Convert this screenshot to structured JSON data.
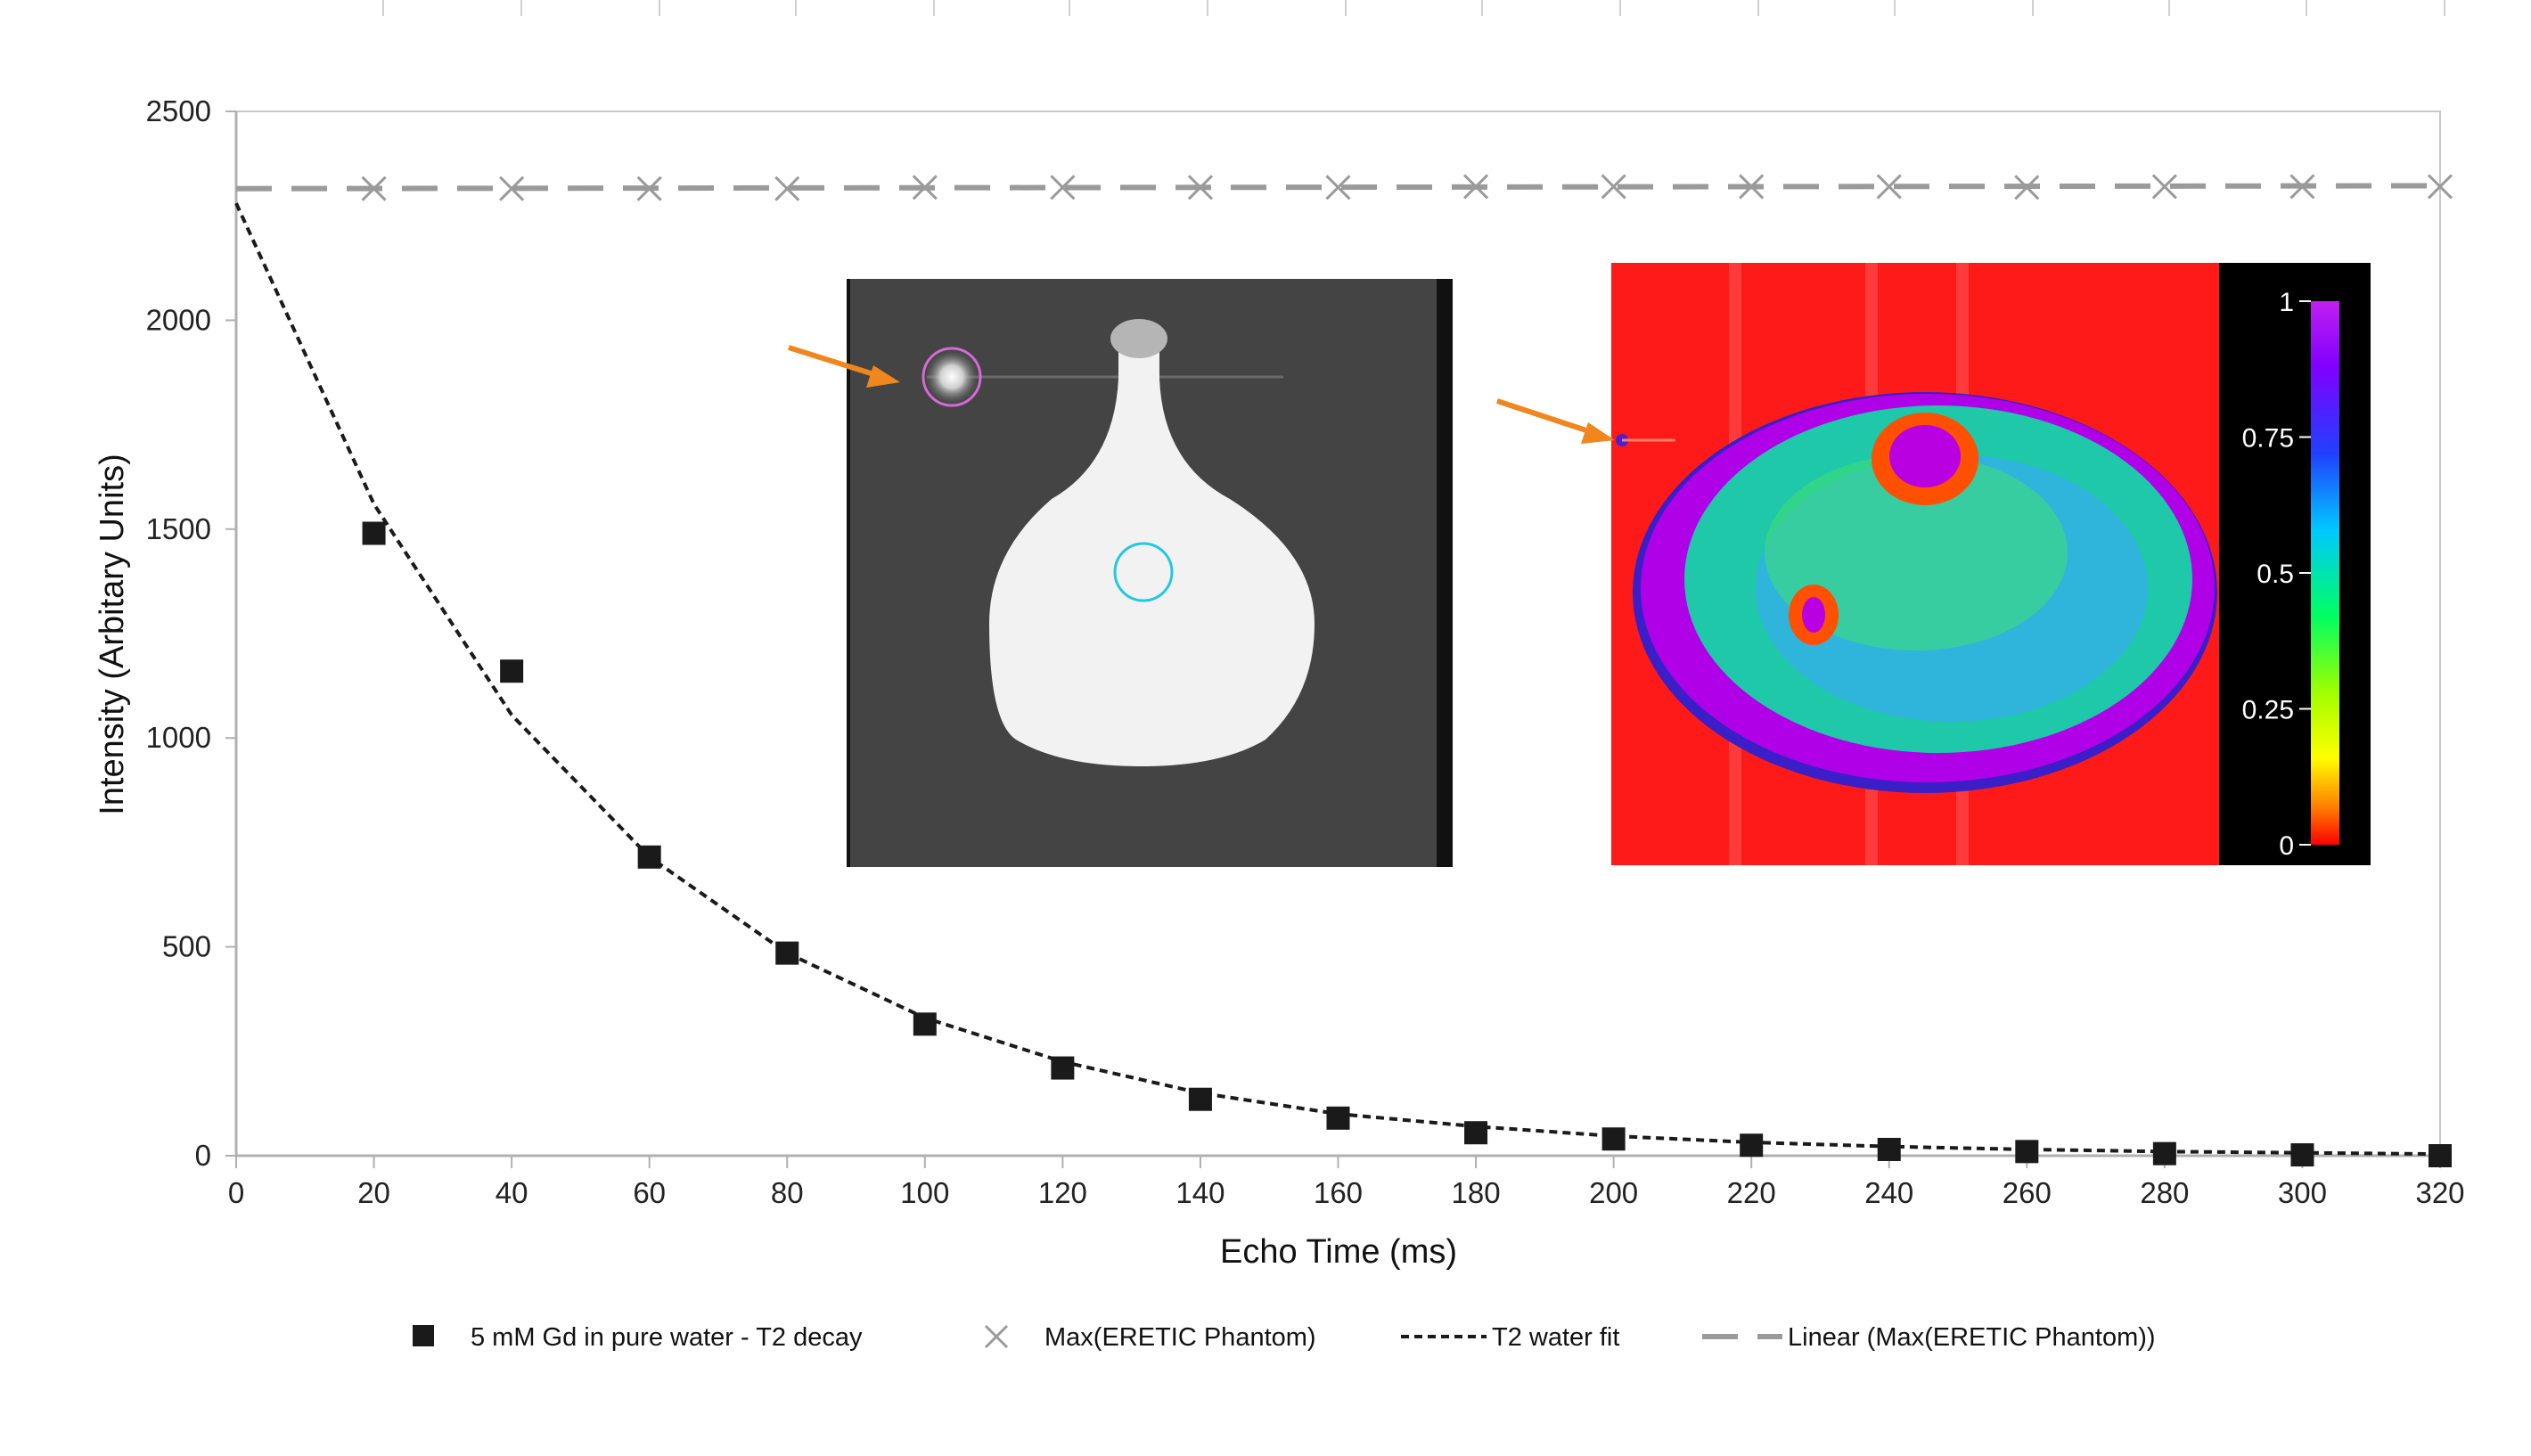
{
  "chart_data": {
    "type": "scatter",
    "title": "",
    "xlabel": "Echo Time (ms)",
    "ylabel": "Intensity (Arbitary Units)",
    "xlim": [
      0,
      320
    ],
    "ylim": [
      0,
      2500
    ],
    "x_ticks": [
      0,
      20,
      40,
      60,
      80,
      100,
      120,
      140,
      160,
      180,
      200,
      220,
      240,
      260,
      280,
      300,
      320
    ],
    "y_ticks": [
      0,
      500,
      1000,
      1500,
      2000,
      2500
    ],
    "grid": "horizontal top line only",
    "legend_position": "bottom",
    "series": [
      {
        "name": "5 mM Gd in pure water - T2 decay",
        "marker": "filled-square",
        "color": "#1a1a1a",
        "x": [
          20,
          40,
          60,
          80,
          100,
          120,
          140,
          160,
          180,
          200,
          220,
          240,
          260,
          280,
          300,
          320
        ],
        "y": [
          1490,
          1160,
          715,
          485,
          315,
          210,
          135,
          90,
          55,
          40,
          25,
          15,
          10,
          5,
          2,
          0
        ]
      },
      {
        "name": "Max(ERETIC Phantom)",
        "marker": "x",
        "color": "#9a9a9a",
        "x": [
          20,
          40,
          60,
          80,
          100,
          120,
          140,
          160,
          180,
          200,
          220,
          240,
          260,
          280,
          300,
          320
        ],
        "y": [
          2315,
          2315,
          2315,
          2315,
          2318,
          2318,
          2318,
          2318,
          2320,
          2320,
          2320,
          2320,
          2318,
          2320,
          2320,
          2320
        ]
      },
      {
        "name": "T2 water fit",
        "line_style": "dotted",
        "color": "#1a1a1a",
        "x": [
          0,
          20,
          40,
          60,
          80,
          100,
          120,
          140,
          160,
          180,
          200,
          220,
          240,
          260,
          280,
          300,
          320
        ],
        "y": [
          2280,
          1560,
          1055,
          715,
          485,
          330,
          225,
          150,
          100,
          70,
          47,
          32,
          22,
          15,
          10,
          7,
          4
        ]
      },
      {
        "name": "Linear (Max(ERETIC Phantom))",
        "line_style": "dashed",
        "color": "#9a9a9a",
        "x": [
          0,
          320
        ],
        "y": [
          2315,
          2322
        ]
      }
    ],
    "inset_colorbar": {
      "tick_labels": [
        "1",
        "0.75",
        "0.5",
        "0.25",
        "0"
      ]
    }
  },
  "colors": {
    "accent_arrow": "#f0861e",
    "roi_magenta": "#d36ad8",
    "roi_cyan": "#22c8e0",
    "axis": "#bdbdbd"
  }
}
